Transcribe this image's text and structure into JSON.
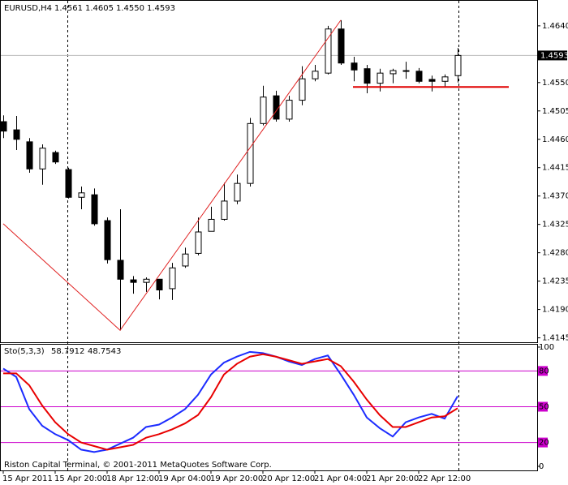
{
  "chart_data": [
    {
      "type": "candlestick",
      "title": "EURUSD,H4",
      "ohlc_labels": [
        "1.4561",
        "1.4605",
        "1.4550",
        "1.4593"
      ],
      "categories": [
        "15 Apr 2011",
        null,
        null,
        null,
        "15 Apr 20:00",
        null,
        null,
        null,
        "18 Apr 12:00",
        null,
        null,
        null,
        "19 Apr 04:00",
        null,
        null,
        null,
        "19 Apr 20:00",
        null,
        null,
        null,
        "20 Apr 12:00",
        null,
        null,
        null,
        "21 Apr 04:00",
        null,
        null,
        null,
        "21 Apr 20:00",
        null,
        null,
        null,
        "22 Apr 12:00",
        null,
        null,
        null
      ],
      "open": [
        1.4488,
        1.4475,
        1.4456,
        1.4413,
        1.4439,
        1.4412,
        1.4368,
        1.4372,
        1.4331,
        1.4268,
        1.4237,
        1.4233,
        1.4238,
        1.4223,
        1.4259,
        1.4279,
        1.4314,
        1.4333,
        1.4362,
        1.439,
        1.4485,
        1.4529,
        1.4492,
        1.4522,
        1.4556,
        1.4565,
        1.4635,
        1.4581,
        1.4572,
        1.4549,
        1.4564,
        1.4568,
        1.4568,
        1.4555,
        1.4552,
        1.4561
      ],
      "high": [
        1.4498,
        1.4497,
        1.4462,
        1.4452,
        1.4442,
        1.4415,
        1.4385,
        1.4382,
        1.4336,
        1.4349,
        1.4243,
        1.4241,
        1.4238,
        1.4264,
        1.4288,
        1.4336,
        1.4353,
        1.4391,
        1.4404,
        1.4494,
        1.4545,
        1.4537,
        1.4529,
        1.4576,
        1.4578,
        1.464,
        1.4649,
        1.4591,
        1.4578,
        1.4572,
        1.4572,
        1.4583,
        1.4573,
        1.4561,
        1.4563,
        1.4605
      ],
      "low": [
        1.4462,
        1.4443,
        1.4407,
        1.4388,
        1.4421,
        1.4366,
        1.4349,
        1.4323,
        1.4263,
        1.4157,
        1.4215,
        1.4218,
        1.4206,
        1.4205,
        1.4256,
        1.4276,
        1.4314,
        1.4331,
        1.4357,
        1.4385,
        1.4482,
        1.4488,
        1.4488,
        1.4514,
        1.4552,
        1.4563,
        1.4578,
        1.4552,
        1.4533,
        1.4536,
        1.4549,
        1.4556,
        1.4549,
        1.4536,
        1.4542,
        1.455
      ],
      "close": [
        1.4473,
        1.446,
        1.4413,
        1.4446,
        1.4424,
        1.4368,
        1.4375,
        1.4326,
        1.4269,
        1.4238,
        1.4233,
        1.4238,
        1.4221,
        1.4256,
        1.4278,
        1.4313,
        1.4333,
        1.4362,
        1.439,
        1.4485,
        1.4527,
        1.4492,
        1.4522,
        1.4556,
        1.4568,
        1.4635,
        1.4581,
        1.457,
        1.4549,
        1.4565,
        1.4569,
        1.4569,
        1.4552,
        1.4552,
        1.4559,
        1.4593
      ],
      "zigzag": {
        "color": "#e02020",
        "bars": [
          0,
          9,
          26
        ],
        "values": [
          1.4326,
          1.4157,
          1.4649
        ]
      },
      "level": {
        "color": "#e00000",
        "value": 1.4543,
        "from_bar": 27
      },
      "ylim": [
        1.4138,
        1.4681
      ],
      "yticks": [
        {
          "value": 1.464,
          "label": "1.4640"
        },
        {
          "value": 1.455,
          "label": "1.4550"
        },
        1.4505,
        {
          "value": 1.446,
          "label": "1.4460"
        },
        1.4415,
        {
          "value": 1.437,
          "label": "1.4370"
        },
        1.4325,
        {
          "value": 1.428,
          "label": "1.4280"
        },
        1.4235,
        {
          "value": 1.419,
          "label": "1.4190"
        },
        1.4145
      ]
    },
    {
      "type": "line",
      "title": "Sto(5,3,3)",
      "series": [
        {
          "name": "Main",
          "color": "#1c2cff",
          "values": [
            82,
            75,
            48,
            34,
            27,
            22,
            14,
            12,
            14,
            19,
            24,
            33,
            35,
            41,
            48,
            60,
            77,
            87,
            92,
            96,
            95,
            92,
            88,
            85,
            90,
            93,
            77,
            60,
            41,
            32,
            25,
            37,
            41,
            44,
            40,
            58.7912
          ]
        },
        {
          "name": "Signal",
          "color": "#e80000",
          "values": [
            78,
            78,
            68,
            51,
            37,
            27,
            20,
            17,
            14,
            16,
            18,
            24,
            27,
            31,
            36,
            43,
            58,
            77,
            86,
            92,
            94,
            92,
            89,
            86,
            88,
            90,
            84,
            71,
            56,
            43,
            33,
            33,
            37,
            41,
            42,
            48.7543
          ]
        }
      ],
      "levels": [
        80,
        50,
        20
      ],
      "level_color": "#cc00cc",
      "ylim": [
        -3.4,
        102.7
      ],
      "yticks": [
        100,
        80,
        50,
        20,
        0
      ],
      "annotation": "Riston Capital Terminal, © 2001-2011 MetaQuotes Software Corp."
    }
  ]
}
